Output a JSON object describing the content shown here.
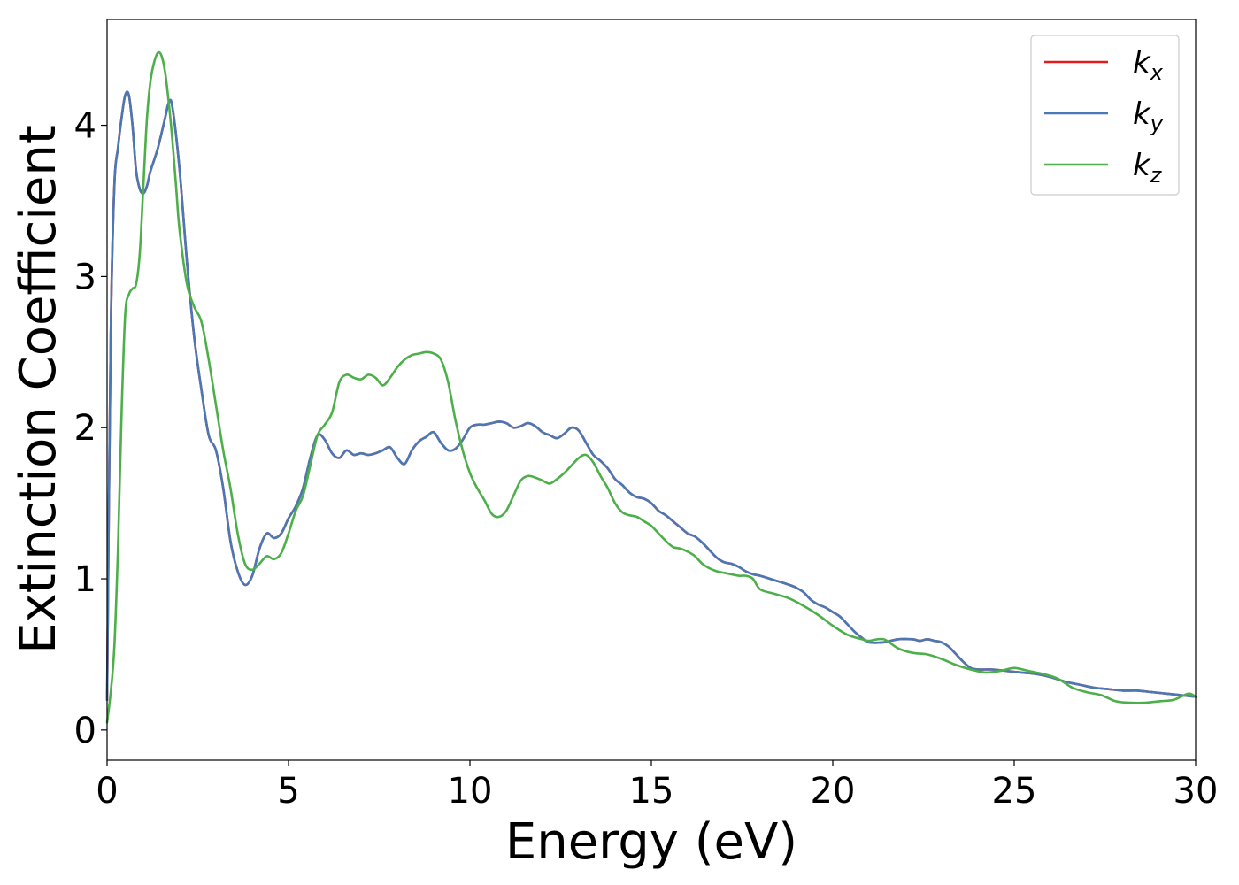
{
  "chart_data": {
    "type": "line",
    "xlabel": "Energy (eV)",
    "ylabel": "Extinction Coefficient",
    "xlim": [
      0,
      30
    ],
    "ylim": [
      -0.2,
      4.7
    ],
    "xticks": [
      0,
      5,
      10,
      15,
      20,
      25,
      30
    ],
    "yticks": [
      0,
      1,
      2,
      3,
      4
    ],
    "grid": false,
    "legend_position": "top-right",
    "series": [
      {
        "name": "k_x",
        "base": "k",
        "sub": "x",
        "color": "#e41a1c",
        "x": [
          0,
          0.1,
          0.2,
          0.3,
          0.4,
          0.5,
          0.6,
          0.7,
          0.8,
          0.9,
          1.0,
          1.1,
          1.2,
          1.4,
          1.6,
          1.7,
          1.8,
          2.0,
          2.2,
          2.4,
          2.6,
          2.8,
          3.0,
          3.2,
          3.4,
          3.6,
          3.8,
          4.0,
          4.2,
          4.4,
          4.6,
          4.8,
          5.0,
          5.2,
          5.4,
          5.6,
          5.8,
          6.0,
          6.2,
          6.4,
          6.6,
          6.8,
          7.0,
          7.2,
          7.4,
          7.6,
          7.8,
          8.0,
          8.2,
          8.4,
          8.6,
          8.8,
          9.0,
          9.2,
          9.4,
          9.6,
          9.8,
          10.0,
          10.2,
          10.4,
          10.6,
          10.8,
          11.0,
          11.2,
          11.4,
          11.6,
          11.8,
          12.0,
          12.2,
          12.4,
          12.6,
          12.8,
          13.0,
          13.2,
          13.4,
          13.6,
          13.8,
          14.0,
          14.2,
          14.4,
          14.6,
          14.8,
          15.0,
          15.2,
          15.4,
          15.6,
          15.8,
          16.0,
          16.2,
          16.4,
          16.6,
          16.8,
          17.0,
          17.2,
          17.4,
          17.6,
          17.8,
          18.0,
          18.4,
          18.8,
          19.0,
          19.2,
          19.4,
          19.6,
          19.8,
          20.0,
          20.2,
          20.4,
          20.6,
          20.8,
          21.0,
          21.4,
          21.8,
          22.2,
          22.4,
          22.6,
          22.8,
          23.0,
          23.2,
          23.4,
          23.6,
          23.8,
          24.0,
          24.4,
          24.8,
          25.2,
          25.6,
          26.0,
          26.4,
          26.8,
          27.2,
          27.6,
          28.0,
          28.4,
          28.8,
          29.2,
          29.6,
          30.0
        ],
        "y": [
          0.2,
          2.6,
          3.6,
          3.85,
          4.05,
          4.2,
          4.2,
          4.0,
          3.7,
          3.58,
          3.55,
          3.6,
          3.7,
          3.85,
          4.05,
          4.15,
          4.12,
          3.7,
          3.1,
          2.6,
          2.25,
          1.95,
          1.85,
          1.6,
          1.25,
          1.05,
          0.96,
          1.02,
          1.2,
          1.3,
          1.27,
          1.3,
          1.4,
          1.48,
          1.6,
          1.8,
          1.95,
          1.92,
          1.83,
          1.8,
          1.85,
          1.82,
          1.83,
          1.82,
          1.83,
          1.85,
          1.87,
          1.8,
          1.76,
          1.85,
          1.91,
          1.94,
          1.97,
          1.9,
          1.85,
          1.86,
          1.92,
          2.0,
          2.02,
          2.02,
          2.03,
          2.04,
          2.03,
          2.0,
          2.01,
          2.03,
          2.01,
          1.97,
          1.95,
          1.93,
          1.96,
          2.0,
          1.98,
          1.9,
          1.82,
          1.78,
          1.73,
          1.66,
          1.62,
          1.57,
          1.54,
          1.53,
          1.5,
          1.45,
          1.42,
          1.38,
          1.34,
          1.3,
          1.28,
          1.24,
          1.19,
          1.14,
          1.11,
          1.1,
          1.08,
          1.05,
          1.03,
          1.02,
          0.99,
          0.96,
          0.94,
          0.91,
          0.86,
          0.83,
          0.81,
          0.78,
          0.75,
          0.7,
          0.65,
          0.61,
          0.58,
          0.58,
          0.6,
          0.6,
          0.59,
          0.6,
          0.59,
          0.58,
          0.55,
          0.5,
          0.45,
          0.41,
          0.4,
          0.4,
          0.39,
          0.38,
          0.37,
          0.35,
          0.32,
          0.3,
          0.28,
          0.27,
          0.26,
          0.26,
          0.25,
          0.24,
          0.23,
          0.22
        ]
      },
      {
        "name": "k_y",
        "base": "k",
        "sub": "y",
        "color": "#4a78b5",
        "x": [
          0,
          0.1,
          0.2,
          0.3,
          0.4,
          0.5,
          0.6,
          0.7,
          0.8,
          0.9,
          1.0,
          1.1,
          1.2,
          1.4,
          1.6,
          1.7,
          1.8,
          2.0,
          2.2,
          2.4,
          2.6,
          2.8,
          3.0,
          3.2,
          3.4,
          3.6,
          3.8,
          4.0,
          4.2,
          4.4,
          4.6,
          4.8,
          5.0,
          5.2,
          5.4,
          5.6,
          5.8,
          6.0,
          6.2,
          6.4,
          6.6,
          6.8,
          7.0,
          7.2,
          7.4,
          7.6,
          7.8,
          8.0,
          8.2,
          8.4,
          8.6,
          8.8,
          9.0,
          9.2,
          9.4,
          9.6,
          9.8,
          10.0,
          10.2,
          10.4,
          10.6,
          10.8,
          11.0,
          11.2,
          11.4,
          11.6,
          11.8,
          12.0,
          12.2,
          12.4,
          12.6,
          12.8,
          13.0,
          13.2,
          13.4,
          13.6,
          13.8,
          14.0,
          14.2,
          14.4,
          14.6,
          14.8,
          15.0,
          15.2,
          15.4,
          15.6,
          15.8,
          16.0,
          16.2,
          16.4,
          16.6,
          16.8,
          17.0,
          17.2,
          17.4,
          17.6,
          17.8,
          18.0,
          18.4,
          18.8,
          19.0,
          19.2,
          19.4,
          19.6,
          19.8,
          20.0,
          20.2,
          20.4,
          20.6,
          20.8,
          21.0,
          21.4,
          21.8,
          22.2,
          22.4,
          22.6,
          22.8,
          23.0,
          23.2,
          23.4,
          23.6,
          23.8,
          24.0,
          24.4,
          24.8,
          25.2,
          25.6,
          26.0,
          26.4,
          26.8,
          27.2,
          27.6,
          28.0,
          28.4,
          28.8,
          29.2,
          29.6,
          30.0
        ],
        "y": [
          0.2,
          2.6,
          3.6,
          3.85,
          4.05,
          4.2,
          4.2,
          4.0,
          3.7,
          3.58,
          3.55,
          3.6,
          3.7,
          3.85,
          4.05,
          4.15,
          4.12,
          3.7,
          3.1,
          2.6,
          2.25,
          1.95,
          1.85,
          1.6,
          1.25,
          1.05,
          0.96,
          1.02,
          1.2,
          1.3,
          1.27,
          1.3,
          1.4,
          1.48,
          1.6,
          1.8,
          1.95,
          1.92,
          1.83,
          1.8,
          1.85,
          1.82,
          1.83,
          1.82,
          1.83,
          1.85,
          1.87,
          1.8,
          1.76,
          1.85,
          1.91,
          1.94,
          1.97,
          1.9,
          1.85,
          1.86,
          1.92,
          2.0,
          2.02,
          2.02,
          2.03,
          2.04,
          2.03,
          2.0,
          2.01,
          2.03,
          2.01,
          1.97,
          1.95,
          1.93,
          1.96,
          2.0,
          1.98,
          1.9,
          1.82,
          1.78,
          1.73,
          1.66,
          1.62,
          1.57,
          1.54,
          1.53,
          1.5,
          1.45,
          1.42,
          1.38,
          1.34,
          1.3,
          1.28,
          1.24,
          1.19,
          1.14,
          1.11,
          1.1,
          1.08,
          1.05,
          1.03,
          1.02,
          0.99,
          0.96,
          0.94,
          0.91,
          0.86,
          0.83,
          0.81,
          0.78,
          0.75,
          0.7,
          0.65,
          0.61,
          0.58,
          0.58,
          0.6,
          0.6,
          0.59,
          0.6,
          0.59,
          0.58,
          0.55,
          0.5,
          0.45,
          0.41,
          0.4,
          0.4,
          0.39,
          0.38,
          0.37,
          0.35,
          0.32,
          0.3,
          0.28,
          0.27,
          0.26,
          0.26,
          0.25,
          0.24,
          0.23,
          0.22
        ]
      },
      {
        "name": "k_z",
        "base": "k",
        "sub": "z",
        "color": "#4daf4a",
        "x": [
          0,
          0.1,
          0.2,
          0.3,
          0.4,
          0.5,
          0.6,
          0.7,
          0.8,
          0.9,
          1.0,
          1.1,
          1.2,
          1.3,
          1.4,
          1.5,
          1.6,
          1.7,
          1.8,
          1.9,
          2.0,
          2.2,
          2.4,
          2.6,
          2.8,
          3.0,
          3.2,
          3.4,
          3.6,
          3.8,
          4.0,
          4.2,
          4.4,
          4.6,
          4.8,
          5.0,
          5.2,
          5.4,
          5.6,
          5.8,
          6.0,
          6.2,
          6.4,
          6.6,
          6.8,
          7.0,
          7.2,
          7.4,
          7.6,
          7.8,
          8.0,
          8.2,
          8.4,
          8.6,
          8.8,
          9.0,
          9.2,
          9.4,
          9.6,
          9.8,
          10.0,
          10.2,
          10.4,
          10.6,
          10.8,
          11.0,
          11.2,
          11.4,
          11.6,
          11.8,
          12.0,
          12.2,
          12.4,
          12.6,
          12.8,
          13.0,
          13.2,
          13.4,
          13.6,
          13.8,
          14.0,
          14.2,
          14.4,
          14.6,
          14.8,
          15.0,
          15.2,
          15.4,
          15.6,
          15.8,
          16.0,
          16.2,
          16.4,
          16.6,
          16.8,
          17.0,
          17.2,
          17.4,
          17.6,
          17.8,
          18.0,
          18.4,
          18.8,
          19.2,
          19.6,
          20.0,
          20.4,
          20.8,
          21.0,
          21.4,
          21.8,
          22.2,
          22.6,
          23.0,
          23.4,
          23.8,
          24.2,
          24.6,
          25.0,
          25.4,
          25.8,
          26.2,
          26.6,
          27.0,
          27.4,
          27.8,
          28.2,
          28.6,
          29.0,
          29.4,
          29.8,
          30.0
        ],
        "y": [
          0.05,
          0.25,
          0.55,
          1.2,
          2.1,
          2.75,
          2.88,
          2.92,
          2.95,
          3.15,
          3.6,
          4.05,
          4.3,
          4.42,
          4.48,
          4.46,
          4.35,
          4.15,
          3.9,
          3.6,
          3.3,
          2.95,
          2.8,
          2.7,
          2.45,
          2.15,
          1.85,
          1.6,
          1.3,
          1.1,
          1.06,
          1.1,
          1.15,
          1.13,
          1.17,
          1.3,
          1.45,
          1.55,
          1.75,
          1.95,
          2.02,
          2.1,
          2.3,
          2.35,
          2.33,
          2.32,
          2.35,
          2.33,
          2.28,
          2.33,
          2.4,
          2.45,
          2.48,
          2.49,
          2.5,
          2.49,
          2.45,
          2.3,
          2.05,
          1.85,
          1.7,
          1.6,
          1.52,
          1.43,
          1.41,
          1.45,
          1.55,
          1.65,
          1.68,
          1.67,
          1.65,
          1.63,
          1.66,
          1.7,
          1.75,
          1.8,
          1.82,
          1.77,
          1.68,
          1.6,
          1.5,
          1.44,
          1.42,
          1.41,
          1.38,
          1.35,
          1.3,
          1.25,
          1.21,
          1.2,
          1.18,
          1.15,
          1.1,
          1.07,
          1.05,
          1.04,
          1.03,
          1.02,
          1.02,
          1.0,
          0.93,
          0.9,
          0.87,
          0.82,
          0.76,
          0.69,
          0.63,
          0.6,
          0.59,
          0.6,
          0.54,
          0.51,
          0.5,
          0.47,
          0.43,
          0.4,
          0.38,
          0.39,
          0.41,
          0.39,
          0.37,
          0.34,
          0.28,
          0.25,
          0.23,
          0.19,
          0.18,
          0.18,
          0.19,
          0.2,
          0.24,
          0.22
        ]
      }
    ]
  }
}
